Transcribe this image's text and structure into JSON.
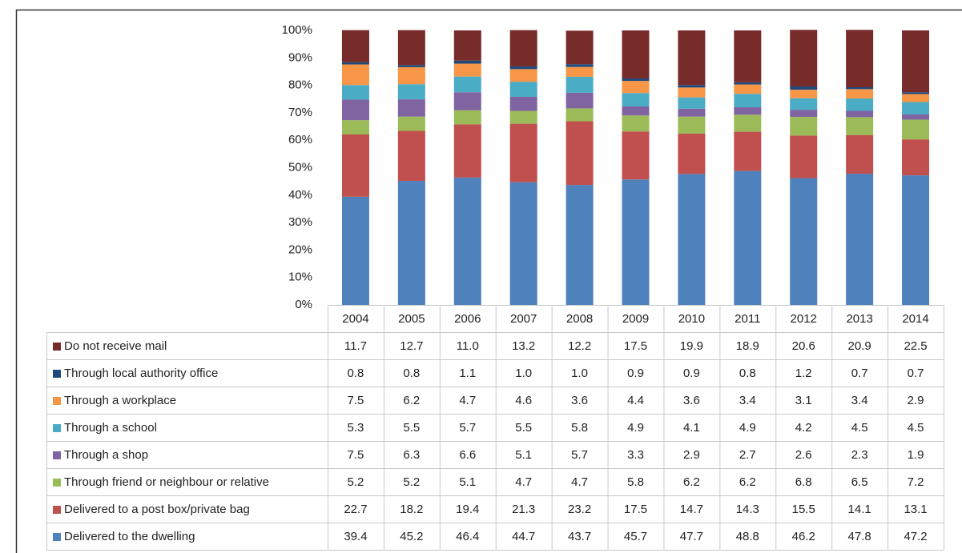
{
  "chart_data": {
    "type": "stacked_bar",
    "categories": [
      "2004",
      "2005",
      "2006",
      "2007",
      "2008",
      "2009",
      "2010",
      "2011",
      "2012",
      "2013",
      "2014"
    ],
    "ylim": [
      0,
      100
    ],
    "yticks": [
      {
        "value": 0,
        "label": "0%"
      },
      {
        "value": 10,
        "label": "10%"
      },
      {
        "value": 20,
        "label": "20%"
      },
      {
        "value": 30,
        "label": "30%"
      },
      {
        "value": 40,
        "label": "40%"
      },
      {
        "value": 50,
        "label": "50%"
      },
      {
        "value": 60,
        "label": "60%"
      },
      {
        "value": 70,
        "label": "70%"
      },
      {
        "value": 80,
        "label": "80%"
      },
      {
        "value": 90,
        "label": "90%"
      },
      {
        "value": 100,
        "label": "100%"
      }
    ],
    "series": [
      {
        "name": "Do not receive mail",
        "color": "#772c2a",
        "values": [
          11.7,
          12.7,
          11.0,
          13.2,
          12.2,
          17.5,
          19.9,
          18.9,
          20.6,
          20.9,
          22.5
        ],
        "value_labels": [
          "11.7",
          "12.7",
          "11.0",
          "13.2",
          "12.2",
          "17.5",
          "19.9",
          "18.9",
          "20.6",
          "20.9",
          "22.5"
        ]
      },
      {
        "name": "Through local authority office",
        "color": "#1f497d",
        "values": [
          0.8,
          0.8,
          1.1,
          1.0,
          1.0,
          0.9,
          0.9,
          0.8,
          1.2,
          0.7,
          0.7
        ],
        "value_labels": [
          "0.8",
          "0.8",
          "1.1",
          "1.0",
          "1.0",
          "0.9",
          "0.9",
          "0.8",
          "1.2",
          "0.7",
          "0.7"
        ]
      },
      {
        "name": "Through a workplace",
        "color": "#f79646",
        "values": [
          7.5,
          6.2,
          4.7,
          4.6,
          3.6,
          4.4,
          3.6,
          3.4,
          3.1,
          3.4,
          2.9
        ],
        "value_labels": [
          "7.5",
          "6.2",
          "4.7",
          "4.6",
          "3.6",
          "4.4",
          "3.6",
          "3.4",
          "3.1",
          "3.4",
          "2.9"
        ]
      },
      {
        "name": "Through a school",
        "color": "#4bacc6",
        "values": [
          5.3,
          5.5,
          5.7,
          5.5,
          5.8,
          4.9,
          4.1,
          4.9,
          4.2,
          4.5,
          4.5
        ],
        "value_labels": [
          "5.3",
          "5.5",
          "5.7",
          "5.5",
          "5.8",
          "4.9",
          "4.1",
          "4.9",
          "4.2",
          "4.5",
          "4.5"
        ]
      },
      {
        "name": "Through a shop",
        "color": "#8064a2",
        "values": [
          7.5,
          6.3,
          6.6,
          5.1,
          5.7,
          3.3,
          2.9,
          2.7,
          2.6,
          2.3,
          1.9
        ],
        "value_labels": [
          "7.5",
          "6.3",
          "6.6",
          "5.1",
          "5.7",
          "3.3",
          "2.9",
          "2.7",
          "2.6",
          "2.3",
          "1.9"
        ]
      },
      {
        "name": "Through friend or neighbour or relative",
        "color": "#9bbb59",
        "values": [
          5.2,
          5.2,
          5.1,
          4.7,
          4.7,
          5.8,
          6.2,
          6.2,
          6.8,
          6.5,
          7.2
        ],
        "value_labels": [
          "5.2",
          "5.2",
          "5.1",
          "4.7",
          "4.7",
          "5.8",
          "6.2",
          "6.2",
          "6.8",
          "6.5",
          "7.2"
        ]
      },
      {
        "name": "Delivered to a post box/private bag",
        "color": "#c0504d",
        "values": [
          22.7,
          18.2,
          19.4,
          21.3,
          23.2,
          17.5,
          14.7,
          14.3,
          15.5,
          14.1,
          13.1
        ],
        "value_labels": [
          "22.7",
          "18.2",
          "19.4",
          "21.3",
          "23.2",
          "17.5",
          "14.7",
          "14.3",
          "15.5",
          "14.1",
          "13.1"
        ]
      },
      {
        "name": "Delivered to the dwelling",
        "color": "#4f81bd",
        "values": [
          39.4,
          45.2,
          46.4,
          44.7,
          43.7,
          45.7,
          47.7,
          48.8,
          46.2,
          47.8,
          47.2
        ],
        "value_labels": [
          "39.4",
          "45.2",
          "46.4",
          "44.7",
          "43.7",
          "45.7",
          "47.7",
          "48.8",
          "46.2",
          "47.8",
          "47.2"
        ]
      }
    ]
  }
}
